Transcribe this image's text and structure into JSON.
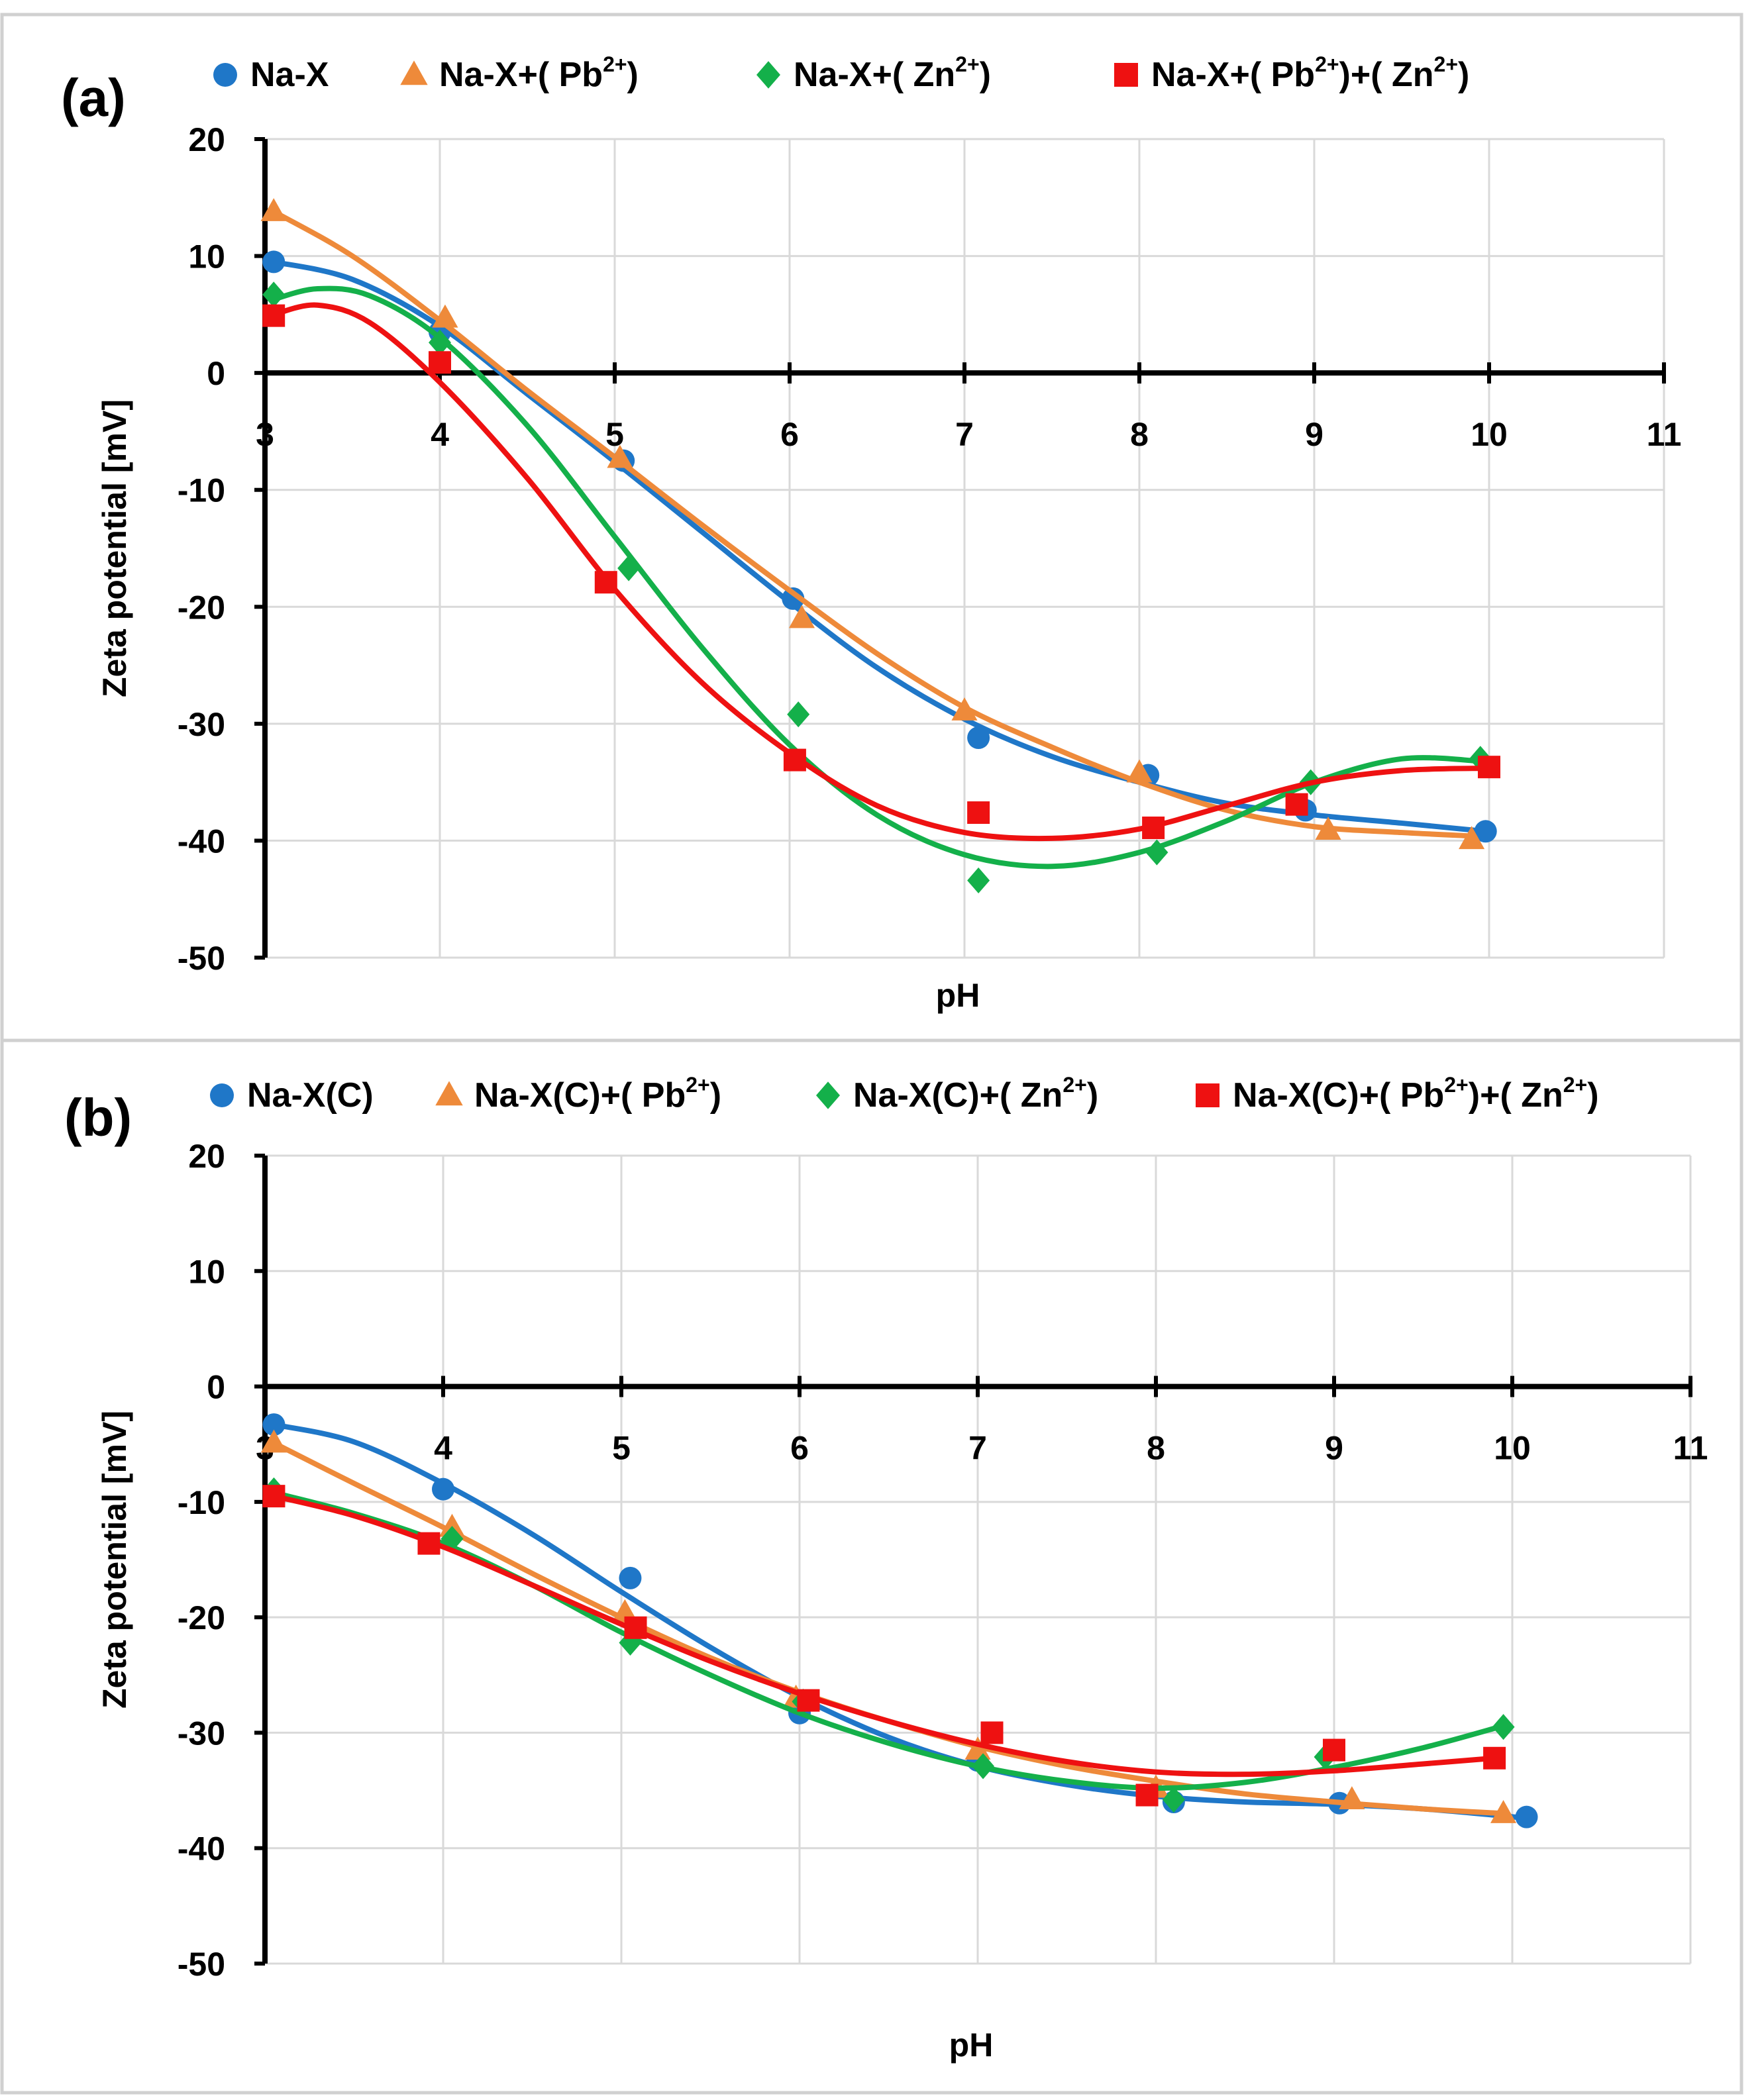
{
  "colors": {
    "blue": "#1f77c8",
    "orange": "#ee8a3a",
    "green": "#14b04a",
    "red": "#ee1111"
  },
  "chart_data": [
    {
      "type": "scatter",
      "panel_label": "(a)",
      "xlabel": "pH",
      "ylabel": "Zeta potential [mV]",
      "xlim": [
        3,
        11
      ],
      "ylim": [
        -50,
        20
      ],
      "xticks": [
        "3",
        "4",
        "5",
        "6",
        "7",
        "8",
        "9",
        "10",
        "11"
      ],
      "yticks": [
        "20",
        "10",
        "0",
        "-10",
        "-20",
        "-30",
        "-40",
        "-50"
      ],
      "grid": true,
      "legend_position": "top",
      "series": [
        {
          "name": "Na-X",
          "legend_base": "Na-X",
          "legend_ions": [],
          "marker": "circle",
          "color": "#1f77c8",
          "x": [
            3.05,
            4.0,
            5.05,
            6.02,
            7.08,
            8.05,
            8.95,
            9.98
          ],
          "y": [
            9.5,
            3.5,
            -7.5,
            -19.3,
            -31.2,
            -34.4,
            -37.4,
            -39.2
          ],
          "trend_x": [
            3.05,
            3.5,
            4.0,
            4.5,
            5.0,
            5.5,
            6.0,
            6.5,
            7.0,
            7.5,
            8.0,
            8.5,
            9.0,
            9.5,
            9.98
          ],
          "trend_y": [
            9.5,
            8.0,
            4.0,
            -1.8,
            -7.6,
            -13.6,
            -19.6,
            -25.2,
            -29.6,
            -32.8,
            -35.0,
            -36.8,
            -37.8,
            -38.5,
            -39.2
          ]
        },
        {
          "name": "Na-X+(Pb2+)",
          "legend_base": "Na-X+",
          "legend_ions": [
            "Pb"
          ],
          "marker": "triangle",
          "color": "#ee8a3a",
          "x": [
            3.05,
            4.03,
            5.03,
            6.07,
            7.0,
            8.0,
            9.08,
            9.9
          ],
          "y": [
            13.8,
            4.7,
            -7.3,
            -21.0,
            -28.9,
            -34.2,
            -39.1,
            -39.9
          ],
          "trend_x": [
            3.05,
            3.5,
            4.0,
            4.5,
            5.0,
            5.5,
            6.0,
            6.5,
            7.0,
            7.5,
            8.0,
            8.5,
            9.0,
            9.5,
            9.9
          ],
          "trend_y": [
            13.8,
            10.0,
            4.5,
            -1.5,
            -7.2,
            -13.0,
            -18.6,
            -24.0,
            -28.6,
            -32.0,
            -35.0,
            -37.4,
            -38.8,
            -39.3,
            -39.6
          ]
        },
        {
          "name": "Na-X+(Zn2+)",
          "legend_base": "Na-X+",
          "legend_ions": [
            "Zn"
          ],
          "marker": "diamond",
          "color": "#14b04a",
          "x": [
            3.05,
            4.0,
            5.08,
            6.05,
            7.08,
            8.1,
            8.98,
            9.95
          ],
          "y": [
            6.7,
            2.6,
            -16.7,
            -29.2,
            -43.4,
            -41.0,
            -35.0,
            -33.0
          ],
          "trend_x": [
            3.05,
            3.3,
            3.6,
            4.0,
            4.5,
            5.0,
            5.5,
            6.0,
            6.5,
            7.0,
            7.5,
            8.0,
            8.5,
            9.0,
            9.5,
            9.95
          ],
          "trend_y": [
            6.3,
            7.2,
            6.6,
            3.0,
            -4.5,
            -14.0,
            -23.5,
            -31.8,
            -37.8,
            -41.2,
            -42.2,
            -41.0,
            -38.3,
            -35.0,
            -33.0,
            -33.2
          ]
        },
        {
          "name": "Na-X+(Pb2+)+(Zn2+)",
          "legend_base": "Na-X+",
          "legend_ions": [
            "Pb",
            "Zn"
          ],
          "marker": "square",
          "color": "#ee1111",
          "x": [
            3.05,
            4.0,
            4.95,
            6.03,
            7.08,
            8.08,
            8.9,
            10.0
          ],
          "y": [
            4.9,
            0.9,
            -17.9,
            -33.1,
            -37.6,
            -38.9,
            -36.9,
            -33.7
          ],
          "trend_x": [
            3.05,
            3.3,
            3.6,
            4.0,
            4.5,
            5.0,
            5.5,
            6.0,
            6.5,
            7.0,
            7.5,
            8.0,
            8.5,
            9.0,
            9.5,
            10.0
          ],
          "trend_y": [
            5.0,
            5.8,
            4.3,
            -0.8,
            -9.0,
            -18.5,
            -26.5,
            -32.5,
            -37.0,
            -39.3,
            -39.8,
            -39.0,
            -37.0,
            -35.0,
            -34.0,
            -33.8
          ]
        }
      ]
    },
    {
      "type": "scatter",
      "panel_label": "(b)",
      "xlabel": "pH",
      "ylabel": "Zeta potential [mV]",
      "xlim": [
        3,
        11
      ],
      "ylim": [
        -50,
        20
      ],
      "xticks": [
        "3",
        "4",
        "5",
        "6",
        "7",
        "8",
        "9",
        "10",
        "11"
      ],
      "yticks": [
        "20",
        "10",
        "0",
        "-10",
        "-20",
        "-30",
        "-40",
        "-50"
      ],
      "grid": true,
      "legend_position": "top",
      "series": [
        {
          "name": "Na-X(C)",
          "legend_base": "Na-X(C)",
          "legend_ions": [],
          "marker": "circle",
          "color": "#1f77c8",
          "x": [
            3.05,
            4.0,
            5.05,
            6.0,
            7.0,
            8.1,
            9.03,
            10.08
          ],
          "y": [
            -3.3,
            -8.9,
            -16.6,
            -28.3,
            -32.4,
            -36.0,
            -36.1,
            -37.3
          ],
          "trend_x": [
            3.05,
            3.5,
            4.0,
            4.5,
            5.0,
            5.5,
            6.0,
            6.5,
            7.0,
            7.5,
            8.0,
            8.5,
            9.0,
            9.5,
            10.08
          ],
          "trend_y": [
            -3.3,
            -4.8,
            -8.4,
            -12.8,
            -17.8,
            -22.6,
            -26.9,
            -30.4,
            -32.9,
            -34.5,
            -35.5,
            -36.0,
            -36.2,
            -36.6,
            -37.4
          ]
        },
        {
          "name": "Na-X(C)+(Pb2+)",
          "legend_base": "Na-X(C)+",
          "legend_ions": [
            "Pb"
          ],
          "marker": "triangle",
          "color": "#ee8a3a",
          "x": [
            3.05,
            4.05,
            5.02,
            5.98,
            7.0,
            8.0,
            9.1,
            9.95
          ],
          "y": [
            -4.9,
            -12.2,
            -19.6,
            -27.0,
            -31.5,
            -34.8,
            -35.8,
            -37.0
          ],
          "trend_x": [
            3.05,
            3.5,
            4.0,
            4.5,
            5.0,
            5.5,
            6.0,
            6.5,
            7.0,
            7.5,
            8.0,
            8.5,
            9.0,
            9.5,
            9.95
          ],
          "trend_y": [
            -4.9,
            -8.4,
            -12.2,
            -16.2,
            -20.0,
            -23.5,
            -26.5,
            -29.0,
            -31.2,
            -32.9,
            -34.2,
            -35.3,
            -36.0,
            -36.6,
            -37.0
          ]
        },
        {
          "name": "Na-X(C)+(Zn2+)",
          "legend_base": "Na-X(C)+",
          "legend_ions": [
            "Zn"
          ],
          "marker": "diamond",
          "color": "#14b04a",
          "x": [
            3.05,
            4.05,
            5.05,
            6.02,
            7.03,
            8.1,
            8.95,
            9.95
          ],
          "y": [
            -9.0,
            -13.2,
            -22.2,
            -27.3,
            -32.9,
            -35.8,
            -32.1,
            -29.5
          ],
          "trend_x": [
            3.05,
            3.5,
            4.0,
            4.5,
            5.0,
            5.5,
            6.0,
            6.5,
            7.0,
            7.5,
            8.0,
            8.5,
            9.0,
            9.5,
            9.95
          ],
          "trend_y": [
            -9.2,
            -11.0,
            -13.6,
            -17.2,
            -21.3,
            -25.0,
            -28.3,
            -30.9,
            -32.9,
            -34.2,
            -34.8,
            -34.3,
            -33.0,
            -31.3,
            -29.4
          ]
        },
        {
          "name": "Na-X(C)+(Pb2+)+(Zn2+)",
          "legend_base": "Na-X(C)+",
          "legend_ions": [
            "Pb",
            "Zn"
          ],
          "marker": "square",
          "color": "#ee1111",
          "x": [
            3.05,
            3.92,
            5.08,
            6.05,
            7.08,
            7.95,
            9.0,
            9.9
          ],
          "y": [
            -9.5,
            -13.6,
            -20.9,
            -27.2,
            -30.0,
            -35.4,
            -31.5,
            -32.2
          ],
          "trend_x": [
            3.05,
            3.5,
            4.0,
            4.5,
            5.0,
            5.5,
            6.0,
            6.5,
            7.0,
            7.5,
            8.0,
            8.5,
            9.0,
            9.5,
            9.9
          ],
          "trend_y": [
            -9.5,
            -11.2,
            -13.9,
            -17.2,
            -20.6,
            -23.8,
            -26.6,
            -29.0,
            -31.0,
            -32.5,
            -33.4,
            -33.6,
            -33.3,
            -32.7,
            -32.2
          ]
        }
      ]
    }
  ]
}
